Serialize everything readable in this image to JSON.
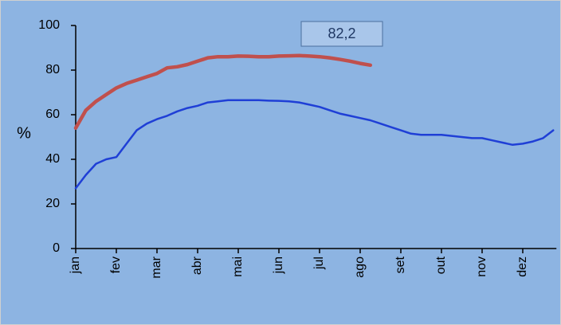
{
  "chart_data": {
    "type": "line",
    "categories": [
      "jan",
      null,
      null,
      null,
      "fev",
      null,
      null,
      null,
      "mar",
      null,
      null,
      null,
      "abr",
      null,
      null,
      null,
      "mai",
      null,
      null,
      null,
      "jun",
      null,
      null,
      null,
      "jul",
      null,
      null,
      null,
      "ago",
      null,
      null,
      null,
      "set",
      null,
      null,
      null,
      "out",
      null,
      null,
      null,
      "nov",
      null,
      null,
      null,
      "dez",
      null,
      null,
      null
    ],
    "series": [
      {
        "color": "#1f3fd6",
        "values": [
          27,
          33,
          38,
          40,
          41,
          47,
          53,
          56,
          58,
          59.5,
          61.5,
          63,
          64,
          65.5,
          66,
          66.5,
          66.5,
          66.5,
          66.5,
          66.3,
          66.2,
          66,
          65.5,
          64.5,
          63.5,
          62,
          60.5,
          59.5,
          58.5,
          57.5,
          56,
          54.5,
          53,
          51.5,
          51,
          51,
          51,
          50.5,
          50,
          49.5,
          49.5,
          48.5,
          47.5,
          46.5,
          47,
          48,
          49.5,
          53
        ]
      },
      {
        "color": "#c0504d",
        "values": [
          54,
          62,
          66,
          69,
          72,
          74,
          75.5,
          77,
          78.5,
          81,
          81.5,
          82.5,
          84,
          85.5,
          86,
          86,
          86.3,
          86.2,
          86,
          86,
          86.3,
          86.4,
          86.5,
          86.3,
          86,
          85.5,
          84.8,
          84,
          83,
          82.2,
          null,
          null,
          null,
          null,
          null,
          null,
          null,
          null,
          null,
          null,
          null,
          null,
          null,
          null,
          null,
          null,
          null,
          null
        ]
      }
    ],
    "ylabel": "%",
    "annotation": "82,2",
    "ylim": [
      0,
      100
    ],
    "yticks": [
      0,
      20,
      40,
      60,
      80,
      100
    ]
  }
}
